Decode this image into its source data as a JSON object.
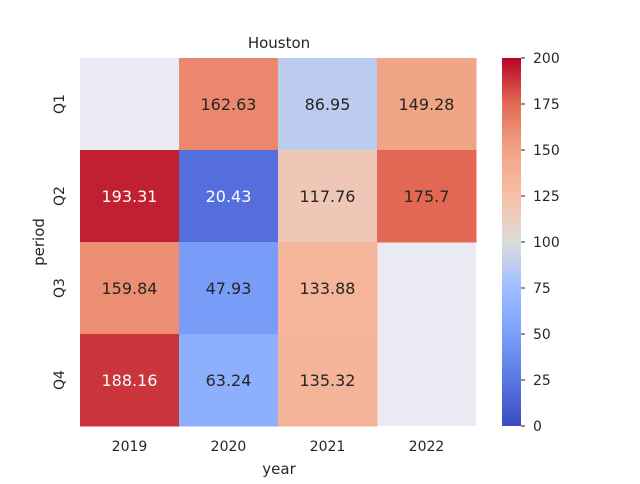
{
  "chart_data": {
    "type": "heatmap",
    "title": "Houston",
    "xlabel": "year",
    "ylabel": "period",
    "x_categories": [
      "2019",
      "2020",
      "2021",
      "2022"
    ],
    "y_categories": [
      "Q1",
      "Q2",
      "Q3",
      "Q4"
    ],
    "values": [
      [
        null,
        162.63,
        86.95,
        149.28
      ],
      [
        193.31,
        20.43,
        117.76,
        175.7
      ],
      [
        159.84,
        47.93,
        133.88,
        null
      ],
      [
        188.16,
        63.24,
        135.32,
        null
      ]
    ],
    "value_labels": [
      [
        null,
        "162.63",
        "86.95",
        "149.28"
      ],
      [
        "193.31",
        "20.43",
        "117.76",
        "175.7"
      ],
      [
        "159.84",
        "47.93",
        "133.88",
        null
      ],
      [
        "188.16",
        "63.24",
        "135.32",
        null
      ]
    ],
    "colormap": "coolwarm",
    "color_range": [
      0,
      200
    ],
    "colorbar_ticks": [
      "0",
      "25",
      "50",
      "75",
      "100",
      "125",
      "150",
      "175",
      "200"
    ],
    "missing_color": "#eaeaf2"
  }
}
